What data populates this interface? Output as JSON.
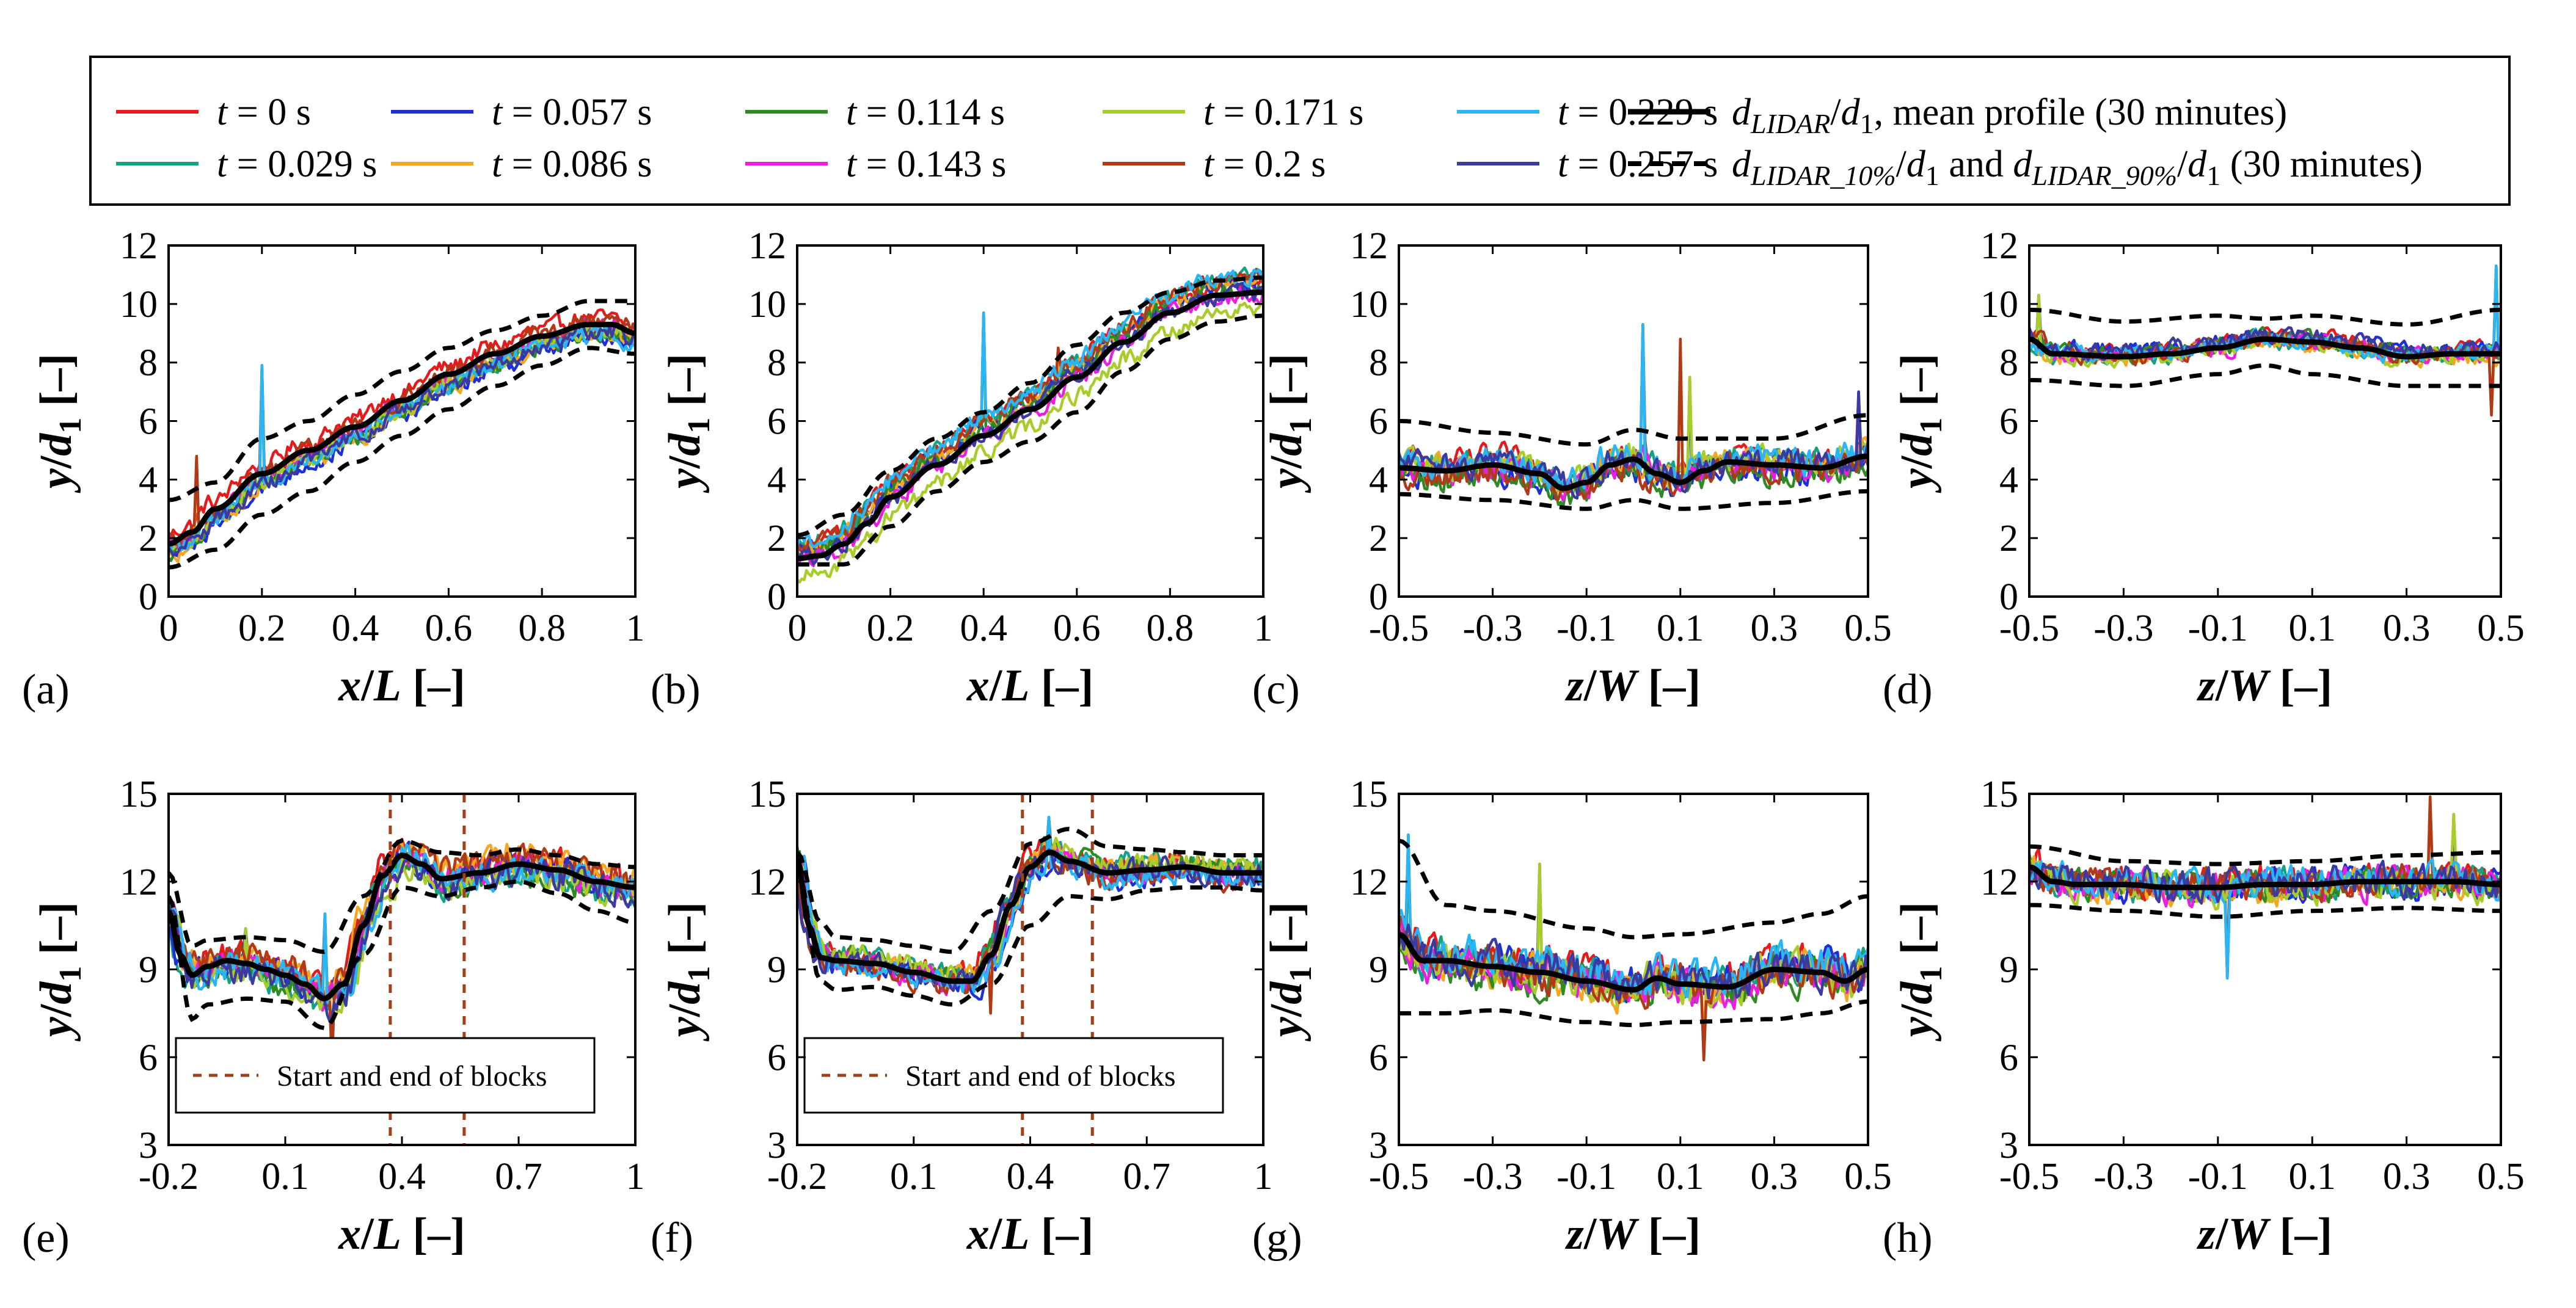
{
  "legend": {
    "entries": [
      {
        "label": "t = 0 s",
        "color": "#e41a1c"
      },
      {
        "label": "t = 0.029 s",
        "color": "#16a085"
      },
      {
        "label": "t = 0.057 s",
        "color": "#1f2fd6"
      },
      {
        "label": "t = 0.086 s",
        "color": "#f5a623"
      },
      {
        "label": "t = 0.114 s",
        "color": "#2e8b22"
      },
      {
        "label": "t = 0.143 s",
        "color": "#e91ee0"
      },
      {
        "label": "t = 0.171 s",
        "color": "#a8cc2a"
      },
      {
        "label": "t = 0.2 s",
        "color": "#b03a18"
      },
      {
        "label": "t = 0.229 s",
        "color": "#29b6f6"
      },
      {
        "label": "t = 0.257 s",
        "color": "#3a3aa0"
      }
    ],
    "mean_label": "d_LIDAR/d_1, mean profile (30 minutes)",
    "pct_label": "d_LIDAR_10%/d_1 and d_LIDAR_90%/d_1 (30 minutes)"
  },
  "chart_data": [
    {
      "id": "a",
      "panel_label": "(a)",
      "type": "line",
      "xlabel": "x/L [–]",
      "ylabel": "y/d1 [–]",
      "xlim": [
        0,
        1
      ],
      "ylim": [
        0,
        12
      ],
      "xticks": [
        0,
        0.2,
        0.4,
        0.6,
        0.8,
        1
      ],
      "xtick_labels": [
        "0",
        "0.2",
        "0.4",
        "0.6",
        "0.8",
        "1"
      ],
      "yticks": [
        0,
        2,
        4,
        6,
        8,
        10,
        12
      ],
      "ytick_labels": [
        "0",
        "2",
        "4",
        "6",
        "8",
        "10",
        "12"
      ],
      "mean": {
        "x": [
          0,
          0.05,
          0.1,
          0.2,
          0.3,
          0.4,
          0.5,
          0.6,
          0.7,
          0.8,
          0.9,
          0.95,
          1.0
        ],
        "y": [
          1.8,
          2.2,
          3.0,
          4.2,
          5.0,
          5.8,
          6.7,
          7.6,
          8.3,
          8.9,
          9.3,
          9.3,
          9.0
        ]
      },
      "p10": {
        "x": [
          0,
          0.1,
          0.2,
          0.3,
          0.4,
          0.5,
          0.6,
          0.7,
          0.8,
          0.9,
          1.0
        ],
        "y": [
          1.0,
          1.6,
          2.8,
          3.6,
          4.6,
          5.5,
          6.4,
          7.2,
          7.9,
          8.5,
          8.3
        ]
      },
      "p90": {
        "x": [
          0,
          0.1,
          0.2,
          0.3,
          0.4,
          0.5,
          0.6,
          0.7,
          0.8,
          0.9,
          1.0
        ],
        "y": [
          3.3,
          3.9,
          5.4,
          6.0,
          6.9,
          7.7,
          8.5,
          9.1,
          9.6,
          10.1,
          10.1
        ]
      },
      "spikes": [
        [
          0.2,
          7.9
        ],
        [
          0.06,
          4.8
        ]
      ],
      "noise": 0.45,
      "series_spread": 0.5
    },
    {
      "id": "b",
      "panel_label": "(b)",
      "type": "line",
      "xlabel": "x/L [–]",
      "ylabel": "y/d1 [–]",
      "xlim": [
        0,
        1
      ],
      "ylim": [
        0,
        12
      ],
      "xticks": [
        0,
        0.2,
        0.4,
        0.6,
        0.8,
        1
      ],
      "xtick_labels": [
        "0",
        "0.2",
        "0.4",
        "0.6",
        "0.8",
        "1"
      ],
      "yticks": [
        0,
        2,
        4,
        6,
        8,
        10,
        12
      ],
      "ytick_labels": [
        "0",
        "2",
        "4",
        "6",
        "8",
        "10",
        "12"
      ],
      "mean": {
        "x": [
          0,
          0.05,
          0.1,
          0.15,
          0.2,
          0.3,
          0.4,
          0.5,
          0.6,
          0.7,
          0.8,
          0.9,
          1.0
        ],
        "y": [
          1.3,
          1.4,
          1.8,
          2.5,
          3.4,
          4.5,
          5.5,
          6.4,
          7.5,
          8.7,
          9.7,
          10.3,
          10.4
        ]
      },
      "p10": {
        "x": [
          0,
          0.1,
          0.2,
          0.3,
          0.4,
          0.5,
          0.6,
          0.7,
          0.8,
          0.9,
          1.0
        ],
        "y": [
          1.1,
          1.1,
          2.4,
          3.6,
          4.6,
          5.3,
          6.3,
          7.7,
          8.8,
          9.4,
          9.6
        ]
      },
      "p90": {
        "x": [
          0,
          0.1,
          0.2,
          0.3,
          0.4,
          0.5,
          0.6,
          0.7,
          0.8,
          0.9,
          1.0
        ],
        "y": [
          2.1,
          2.8,
          4.3,
          5.4,
          6.3,
          7.3,
          8.6,
          9.7,
          10.4,
          10.8,
          10.9
        ]
      },
      "spikes": [
        [
          0.4,
          9.7
        ],
        [
          0.56,
          8.5
        ]
      ],
      "noise": 0.45,
      "series_spread": 0.6
    },
    {
      "id": "c",
      "panel_label": "(c)",
      "type": "line",
      "xlabel": "z/W [–]",
      "ylabel": "y/d1 [–]",
      "xlim": [
        -0.5,
        0.5
      ],
      "ylim": [
        0,
        12
      ],
      "xticks": [
        -0.5,
        -0.3,
        -0.1,
        0.1,
        0.3,
        0.5
      ],
      "xtick_labels": [
        "-0.5",
        "-0.3",
        "-0.1",
        "0.1",
        "0.3",
        "0.5"
      ],
      "yticks": [
        0,
        2,
        4,
        6,
        8,
        10,
        12
      ],
      "ytick_labels": [
        "0",
        "2",
        "4",
        "6",
        "8",
        "10",
        "12"
      ],
      "mean": {
        "x": [
          -0.5,
          -0.4,
          -0.3,
          -0.2,
          -0.15,
          -0.1,
          -0.05,
          0.0,
          0.05,
          0.1,
          0.15,
          0.2,
          0.3,
          0.4,
          0.5
        ],
        "y": [
          4.4,
          4.3,
          4.5,
          4.2,
          3.7,
          3.9,
          4.5,
          4.7,
          4.2,
          3.9,
          4.3,
          4.6,
          4.5,
          4.4,
          4.8
        ]
      },
      "p10": {
        "x": [
          -0.5,
          -0.3,
          -0.1,
          0.0,
          0.1,
          0.3,
          0.5
        ],
        "y": [
          3.5,
          3.3,
          3.0,
          3.3,
          3.0,
          3.2,
          3.6
        ]
      },
      "p90": {
        "x": [
          -0.5,
          -0.3,
          -0.1,
          0.0,
          0.1,
          0.3,
          0.5
        ],
        "y": [
          6.0,
          5.6,
          5.2,
          5.7,
          5.4,
          5.4,
          6.2
        ]
      },
      "spikes": [
        [
          0.02,
          9.3
        ],
        [
          0.1,
          8.8
        ],
        [
          0.12,
          7.5
        ],
        [
          0.48,
          7.0
        ]
      ],
      "noise": 0.7,
      "series_spread": 0.4
    },
    {
      "id": "d",
      "panel_label": "(d)",
      "type": "line",
      "xlabel": "z/W [–]",
      "ylabel": "y/d1 [–]",
      "xlim": [
        -0.5,
        0.5
      ],
      "ylim": [
        0,
        12
      ],
      "xticks": [
        -0.5,
        -0.3,
        -0.1,
        0.1,
        0.3,
        0.5
      ],
      "xtick_labels": [
        "-0.5",
        "-0.3",
        "-0.1",
        "0.1",
        "0.3",
        "0.5"
      ],
      "yticks": [
        0,
        2,
        4,
        6,
        8,
        10,
        12
      ],
      "ytick_labels": [
        "0",
        "2",
        "4",
        "6",
        "8",
        "10",
        "12"
      ],
      "mean": {
        "x": [
          -0.5,
          -0.45,
          -0.3,
          -0.2,
          -0.1,
          0.0,
          0.1,
          0.2,
          0.3,
          0.4,
          0.5
        ],
        "y": [
          8.8,
          8.3,
          8.2,
          8.3,
          8.5,
          8.8,
          8.7,
          8.5,
          8.2,
          8.3,
          8.3
        ]
      },
      "p10": {
        "x": [
          -0.5,
          -0.3,
          -0.1,
          0.0,
          0.1,
          0.3,
          0.5
        ],
        "y": [
          7.4,
          7.2,
          7.6,
          7.9,
          7.6,
          7.2,
          7.2
        ]
      },
      "p90": {
        "x": [
          -0.5,
          -0.3,
          -0.1,
          0.0,
          0.1,
          0.3,
          0.5
        ],
        "y": [
          9.8,
          9.4,
          9.6,
          9.5,
          9.6,
          9.3,
          9.8
        ]
      },
      "spikes": [
        [
          0.49,
          11.3
        ],
        [
          0.48,
          6.2
        ],
        [
          -0.48,
          10.3
        ]
      ],
      "noise": 0.45,
      "series_spread": 0.2
    },
    {
      "id": "e",
      "panel_label": "(e)",
      "type": "line",
      "xlabel": "x/L [–]",
      "ylabel": "y/d1 [–]",
      "xlim": [
        -0.2,
        1
      ],
      "ylim": [
        3,
        15
      ],
      "xticks": [
        -0.2,
        0.1,
        0.4,
        0.7,
        1
      ],
      "xtick_labels": [
        "-0.2",
        "0.1",
        "0.4",
        "0.7",
        "1"
      ],
      "yticks": [
        3,
        6,
        9,
        12,
        15
      ],
      "ytick_labels": [
        "3",
        "6",
        "9",
        "12",
        "15"
      ],
      "mean": {
        "x": [
          -0.2,
          -0.17,
          -0.14,
          -0.1,
          -0.05,
          0.0,
          0.05,
          0.1,
          0.15,
          0.2,
          0.25,
          0.3,
          0.35,
          0.4,
          0.45,
          0.5,
          0.6,
          0.7,
          0.8,
          0.9,
          1.0
        ],
        "y": [
          11.0,
          9.5,
          8.8,
          9.1,
          9.3,
          9.2,
          9.0,
          8.8,
          8.5,
          8.0,
          8.5,
          10.5,
          12.2,
          12.9,
          12.6,
          12.1,
          12.3,
          12.6,
          12.4,
          12.0,
          11.8
        ]
      },
      "p10": {
        "x": [
          -0.2,
          -0.14,
          -0.1,
          0.0,
          0.1,
          0.2,
          0.3,
          0.4,
          0.5,
          0.6,
          0.7,
          0.8,
          0.9,
          1.0
        ],
        "y": [
          11.5,
          7.3,
          7.8,
          8.0,
          7.9,
          7.0,
          9.5,
          11.8,
          11.5,
          11.8,
          12.0,
          11.6,
          11.0,
          10.6
        ]
      },
      "p90": {
        "x": [
          -0.2,
          -0.14,
          -0.1,
          0.0,
          0.1,
          0.2,
          0.3,
          0.4,
          0.5,
          0.6,
          0.7,
          0.8,
          0.9,
          1.0
        ],
        "y": [
          12.3,
          9.8,
          10.0,
          10.1,
          10.0,
          9.6,
          11.5,
          13.4,
          13.0,
          12.9,
          13.1,
          12.9,
          12.6,
          12.5
        ]
      },
      "vlines": [
        0.37,
        0.56
      ],
      "inset_label": "Start and end of blocks",
      "spikes": [
        [
          0.2,
          10.9
        ],
        [
          0.22,
          5.8
        ],
        [
          0.0,
          10.4
        ]
      ],
      "noise": 0.75,
      "series_spread": 0.35
    },
    {
      "id": "f",
      "panel_label": "(f)",
      "type": "line",
      "xlabel": "x/L [–]",
      "ylabel": "y/d1 [–]",
      "xlim": [
        -0.2,
        1
      ],
      "ylim": [
        3,
        15
      ],
      "xticks": [
        -0.2,
        0.1,
        0.4,
        0.7,
        1
      ],
      "xtick_labels": [
        "-0.2",
        "0.1",
        "0.4",
        "0.7",
        "1"
      ],
      "yticks": [
        3,
        6,
        9,
        12,
        15
      ],
      "ytick_labels": [
        "3",
        "6",
        "9",
        "12",
        "15"
      ],
      "mean": {
        "x": [
          -0.2,
          -0.17,
          -0.14,
          -0.1,
          0.0,
          0.1,
          0.2,
          0.25,
          0.3,
          0.35,
          0.4,
          0.45,
          0.5,
          0.6,
          0.7,
          0.8,
          0.9,
          1.0
        ],
        "y": [
          12.8,
          10.5,
          9.4,
          9.3,
          9.2,
          8.9,
          8.6,
          8.6,
          9.5,
          11.2,
          12.5,
          13.0,
          12.7,
          12.3,
          12.4,
          12.5,
          12.3,
          12.3
        ]
      },
      "p10": {
        "x": [
          -0.2,
          -0.14,
          -0.1,
          0.0,
          0.1,
          0.2,
          0.3,
          0.4,
          0.5,
          0.6,
          0.7,
          0.8,
          0.9,
          1.0
        ],
        "y": [
          12.5,
          8.6,
          8.3,
          8.4,
          8.1,
          7.8,
          8.5,
          10.5,
          11.5,
          11.4,
          11.7,
          11.8,
          11.8,
          11.7
        ]
      },
      "p90": {
        "x": [
          -0.2,
          -0.14,
          -0.1,
          0.0,
          0.1,
          0.2,
          0.3,
          0.4,
          0.5,
          0.6,
          0.7,
          0.8,
          0.9,
          1.0
        ],
        "y": [
          13.0,
          10.6,
          10.1,
          10.0,
          9.8,
          9.6,
          11.0,
          13.3,
          13.8,
          13.2,
          13.1,
          13.0,
          12.9,
          12.9
        ]
      },
      "vlines": [
        0.38,
        0.56
      ],
      "inset_label": "Start and end of blocks",
      "spikes": [
        [
          0.45,
          14.2
        ],
        [
          0.3,
          7.5
        ]
      ],
      "noise": 0.6,
      "series_spread": 0.3
    },
    {
      "id": "g",
      "panel_label": "(g)",
      "type": "line",
      "xlabel": "z/W [–]",
      "ylabel": "y/d1 [–]",
      "xlim": [
        -0.5,
        0.5
      ],
      "ylim": [
        3,
        15
      ],
      "xticks": [
        -0.5,
        -0.3,
        -0.1,
        0.1,
        0.3,
        0.5
      ],
      "xtick_labels": [
        "-0.5",
        "-0.3",
        "-0.1",
        "0.1",
        "0.3",
        "0.5"
      ],
      "yticks": [
        3,
        6,
        9,
        12,
        15
      ],
      "ytick_labels": [
        "3",
        "6",
        "9",
        "12",
        "15"
      ],
      "mean": {
        "x": [
          -0.5,
          -0.45,
          -0.4,
          -0.3,
          -0.2,
          -0.1,
          0.0,
          0.05,
          0.1,
          0.2,
          0.3,
          0.4,
          0.45,
          0.5
        ],
        "y": [
          10.2,
          9.3,
          9.3,
          9.1,
          8.9,
          8.6,
          8.3,
          8.7,
          8.5,
          8.4,
          9.0,
          8.9,
          8.6,
          9.0
        ]
      },
      "p10": {
        "x": [
          -0.5,
          -0.4,
          -0.3,
          -0.1,
          0.0,
          0.1,
          0.3,
          0.4,
          0.5
        ],
        "y": [
          7.5,
          7.5,
          7.6,
          7.2,
          7.1,
          7.2,
          7.3,
          7.5,
          7.9
        ]
      },
      "p90": {
        "x": [
          -0.5,
          -0.4,
          -0.3,
          -0.1,
          0.0,
          0.1,
          0.3,
          0.4,
          0.5
        ],
        "y": [
          13.4,
          11.2,
          11.0,
          10.4,
          10.1,
          10.2,
          10.6,
          10.9,
          11.5
        ]
      },
      "spikes": [
        [
          -0.48,
          13.6
        ],
        [
          0.15,
          5.9
        ],
        [
          -0.2,
          12.6
        ]
      ],
      "noise": 1.0,
      "series_spread": 0.25
    },
    {
      "id": "h",
      "panel_label": "(h)",
      "type": "line",
      "xlabel": "z/W [–]",
      "ylabel": "y/d1 [–]",
      "xlim": [
        -0.5,
        0.5
      ],
      "ylim": [
        3,
        15
      ],
      "xticks": [
        -0.5,
        -0.3,
        -0.1,
        0.1,
        0.3,
        0.5
      ],
      "xtick_labels": [
        "-0.5",
        "-0.3",
        "-0.1",
        "0.1",
        "0.3",
        "0.5"
      ],
      "yticks": [
        3,
        6,
        9,
        12,
        15
      ],
      "ytick_labels": [
        "3",
        "6",
        "9",
        "12",
        "15"
      ],
      "mean": {
        "x": [
          -0.5,
          -0.45,
          -0.4,
          -0.3,
          -0.2,
          -0.1,
          0.0,
          0.1,
          0.2,
          0.3,
          0.4,
          0.5
        ],
        "y": [
          12.5,
          12.0,
          11.9,
          11.9,
          11.8,
          11.8,
          11.9,
          11.9,
          12.0,
          12.0,
          12.0,
          11.9
        ]
      },
      "p10": {
        "x": [
          -0.5,
          -0.3,
          -0.1,
          0.1,
          0.3,
          0.5
        ],
        "y": [
          11.2,
          11.0,
          10.8,
          11.0,
          11.1,
          11.0
        ]
      },
      "p90": {
        "x": [
          -0.5,
          -0.3,
          -0.1,
          0.1,
          0.3,
          0.5
        ],
        "y": [
          13.2,
          12.7,
          12.6,
          12.7,
          12.9,
          13.0
        ]
      },
      "spikes": [
        [
          -0.08,
          8.7
        ],
        [
          0.35,
          14.9
        ],
        [
          0.4,
          14.3
        ]
      ],
      "noise": 0.85,
      "series_spread": 0.1
    }
  ]
}
